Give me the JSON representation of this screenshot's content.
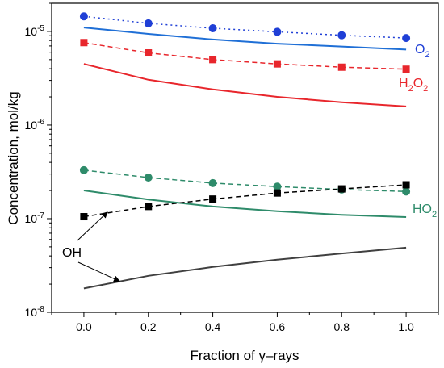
{
  "chart_data": {
    "type": "line",
    "xlabel": "Fraction of γ–rays",
    "ylabel": "Concentration, mol/kg",
    "x_scale": "linear",
    "y_scale": "log",
    "xlim": [
      -0.1,
      1.1
    ],
    "ylim": [
      1e-08,
      2e-05
    ],
    "x_ticks": [
      "0.0",
      "0.2",
      "0.4",
      "0.6",
      "0.8",
      "1.0"
    ],
    "y_ticks": [
      {
        "value": 1e-08,
        "mantissa": "10",
        "exponent": "-8"
      },
      {
        "value": 1e-07,
        "mantissa": "10",
        "exponent": "-7"
      },
      {
        "value": 1e-06,
        "mantissa": "10",
        "exponent": "-6"
      },
      {
        "value": 1e-05,
        "mantissa": "10",
        "exponent": "-5"
      }
    ],
    "grid": false,
    "series": [
      {
        "name": "O2",
        "color": "#1f3fd6",
        "style": "dotted",
        "marker": "circle",
        "x": [
          0.0,
          0.2,
          0.4,
          0.6,
          0.8,
          1.0
        ],
        "y": [
          1.45e-05,
          1.22e-05,
          1.08e-05,
          9.9e-06,
          9.1e-06,
          8.5e-06
        ]
      },
      {
        "color": "#1f6fd6",
        "style": "solid",
        "marker": "none",
        "x": [
          0.0,
          0.2,
          0.4,
          0.6,
          0.8,
          1.0
        ],
        "y": [
          1.1e-05,
          9.4e-06,
          8.2e-06,
          7.4e-06,
          6.9e-06,
          6.4e-06
        ]
      },
      {
        "name": "H2O2",
        "color": "#e8262c",
        "style": "dashed",
        "marker": "square",
        "x": [
          0.0,
          0.2,
          0.4,
          0.6,
          0.8,
          1.0
        ],
        "y": [
          7.6e-06,
          5.9e-06,
          5e-06,
          4.5e-06,
          4.15e-06,
          3.95e-06
        ]
      },
      {
        "color": "#e8262c",
        "style": "solid",
        "marker": "none",
        "x": [
          0.0,
          0.2,
          0.4,
          0.6,
          0.8,
          1.0
        ],
        "y": [
          4.5e-06,
          3.05e-06,
          2.4e-06,
          2e-06,
          1.75e-06,
          1.58e-06
        ]
      },
      {
        "name": "HO2",
        "color": "#2e8b6a",
        "style": "dashed",
        "marker": "circle",
        "x": [
          0.0,
          0.2,
          0.4,
          0.6,
          0.8,
          1.0
        ],
        "y": [
          3.3e-07,
          2.75e-07,
          2.4e-07,
          2.2e-07,
          2.05e-07,
          1.95e-07
        ]
      },
      {
        "color": "#2e8b6a",
        "style": "solid",
        "marker": "none",
        "x": [
          0.0,
          0.2,
          0.4,
          0.6,
          0.8,
          1.0
        ],
        "y": [
          2e-07,
          1.6e-07,
          1.35e-07,
          1.2e-07,
          1.1e-07,
          1.04e-07
        ]
      },
      {
        "name": "OH",
        "color": "#000000",
        "style": "dashed",
        "marker": "square",
        "x": [
          0.0,
          0.2,
          0.4,
          0.6,
          0.8,
          1.0
        ],
        "y": [
          1.05e-07,
          1.35e-07,
          1.62e-07,
          1.88e-07,
          2.08e-07,
          2.3e-07
        ]
      },
      {
        "color": "#404040",
        "style": "solid",
        "marker": "none",
        "x": [
          0.0,
          0.2,
          0.4,
          0.6,
          0.8,
          1.0
        ],
        "y": [
          1.8e-08,
          2.45e-08,
          3.05e-08,
          3.65e-08,
          4.25e-08,
          4.9e-08
        ]
      }
    ],
    "annotations": [
      {
        "text": "O",
        "sub": "2",
        "series": "O2",
        "color": "#1f3fd6"
      },
      {
        "text": "H",
        "sub": "2",
        "text2": "O",
        "sub2": "2",
        "series": "H2O2",
        "color": "#e8262c"
      },
      {
        "text": "HO",
        "sub": "2",
        "series": "HO2",
        "color": "#2e8b6a"
      },
      {
        "text": "OH",
        "sub": "",
        "series": "OH",
        "color": "#000000"
      }
    ]
  }
}
